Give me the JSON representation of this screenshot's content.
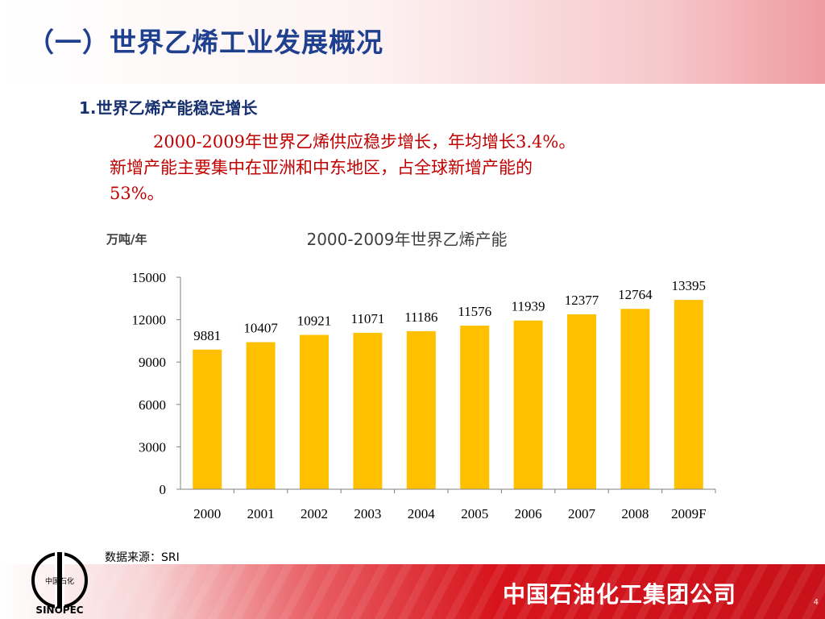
{
  "header": {
    "title": "（一）世界乙烯工业发展概况"
  },
  "section": {
    "heading": "1.世界乙烯产能稳定增长",
    "line1": "2000-2009年世界乙烯供应稳步增长，年均增长3.4%。",
    "line2": "新增产能主要集中在亚洲和中东地区，占全球新增产能的",
    "line3": "53%。"
  },
  "chart_data": {
    "type": "bar",
    "title": "2000-2009年世界乙烯产能",
    "ylabel": "万吨/年",
    "xlabel": "",
    "categories": [
      "2000",
      "2001",
      "2002",
      "2003",
      "2004",
      "2005",
      "2006",
      "2007",
      "2008",
      "2009F"
    ],
    "values": [
      9881,
      10407,
      10921,
      11071,
      11186,
      11576,
      11939,
      12377,
      12764,
      13395
    ],
    "ylim": [
      0,
      15000
    ],
    "yticks": [
      0,
      3000,
      6000,
      9000,
      12000,
      15000
    ],
    "grid": false,
    "bar_color": "#ffc000",
    "data_labels": true
  },
  "source": "数据来源：SRI",
  "footer": {
    "company": "中国石油化工集团公司",
    "page_number": "4",
    "logo_text": "中国石化",
    "logo_wordmark": "SINOPEC"
  },
  "colors": {
    "title": "#1f3f8f",
    "body_text": "#c00000",
    "footer_red": "#d7141c"
  }
}
